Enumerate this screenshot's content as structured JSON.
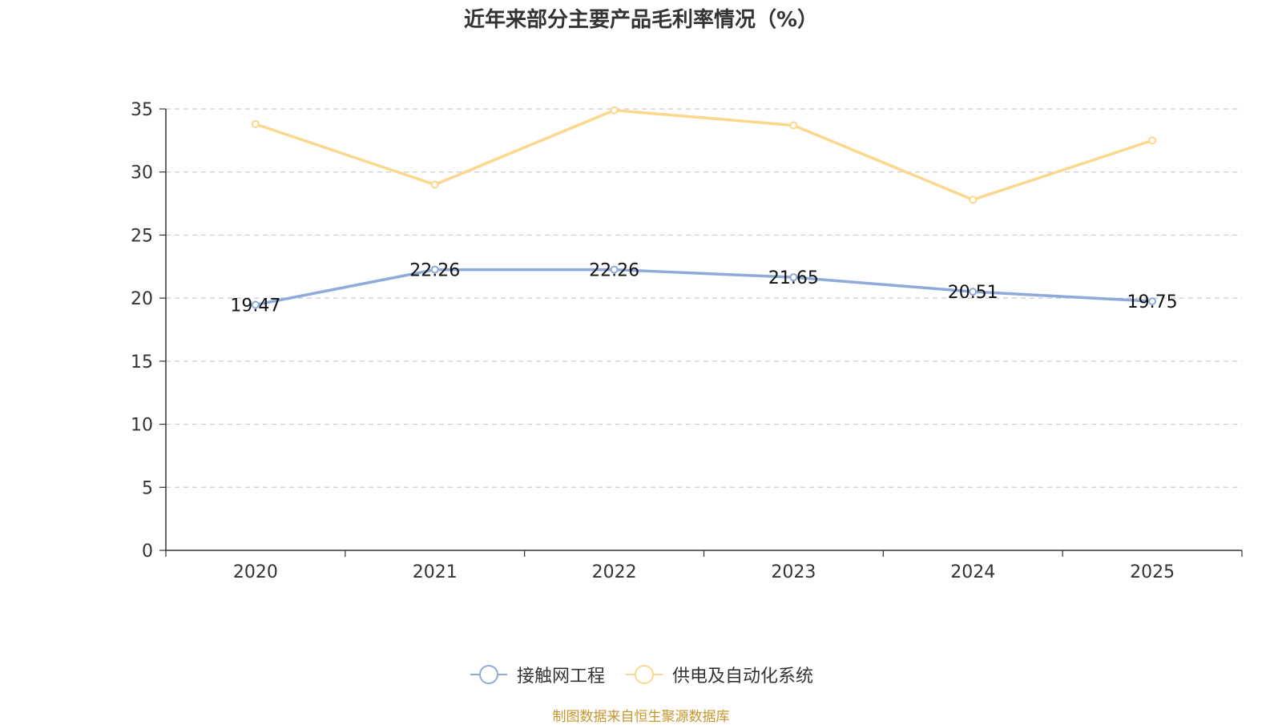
{
  "chart_data": {
    "type": "line",
    "title": "近年来部分主要产品毛利率情况（%）",
    "categories": [
      "2020",
      "2021",
      "2022",
      "2023",
      "2024",
      "2025"
    ],
    "ylim": [
      0,
      35
    ],
    "yticks": [
      0,
      5,
      10,
      15,
      20,
      25,
      30,
      35
    ],
    "ytick_labels": [
      "0",
      "5",
      "10",
      "15",
      "20",
      "25",
      "30",
      "35"
    ],
    "grid": true,
    "legend_position": "bottom-center",
    "series": [
      {
        "name": "接触网工程",
        "color": "#8eaadb",
        "values": [
          19.47,
          22.26,
          22.26,
          21.65,
          20.51,
          19.75
        ],
        "labels": [
          "19.47",
          "22.26",
          "22.26",
          "21.65",
          "20.51",
          "19.75"
        ],
        "show_labels": true
      },
      {
        "name": "供电及自动化系统",
        "color": "#fdd78e",
        "values": [
          33.8,
          29.0,
          34.9,
          33.7,
          27.8,
          32.5
        ],
        "show_labels": false
      }
    ]
  },
  "source_text": "制图数据来自恒生聚源数据库"
}
